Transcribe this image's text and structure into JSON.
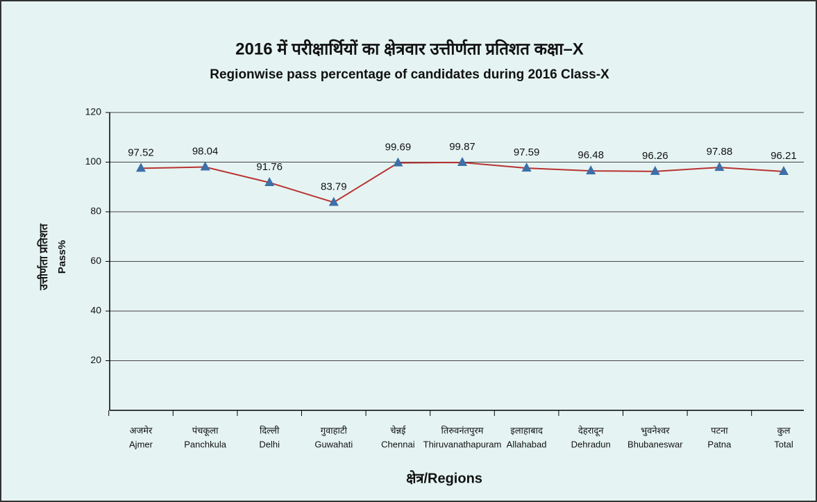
{
  "chart_data": {
    "type": "line",
    "title": "2016 में परीक्षार्थियों का क्षेत्रवार उत्तीर्णता प्रतिशत कक्षा–X",
    "subtitle": "Regionwise pass percentage of candidates during 2016 Class-X",
    "y_label": [
      "उत्तीर्णता प्रतिशत",
      "Pass%"
    ],
    "x_label": "क्षेत्र/Regions",
    "categories_hindi": [
      "अजमेर",
      "पंचकूला",
      "दिल्ली",
      "गुवाहाटी",
      "चेन्नई",
      "तिरुवनंतपुरम",
      "इलाहाबाद",
      "देहरादून",
      "भुवनेश्वर",
      "पटना",
      "कुल"
    ],
    "categories": [
      "Ajmer",
      "Panchkula",
      "Delhi",
      "Guwahati",
      "Chennai",
      "Thiruvanathapuram",
      "Allahabad",
      "Dehradun",
      "Bhubaneswar",
      "Patna",
      "Total"
    ],
    "series": [
      {
        "name": "Pass%",
        "color": "#b83232",
        "marker_color": "#3d6fa8",
        "values": [
          97.52,
          98.04,
          91.76,
          83.79,
          99.69,
          99.87,
          97.59,
          96.48,
          96.26,
          97.88,
          96.21
        ]
      }
    ],
    "ylim": [
      0,
      120
    ],
    "yticks": [
      20,
      40,
      60,
      80,
      100,
      120
    ],
    "grid": true
  }
}
